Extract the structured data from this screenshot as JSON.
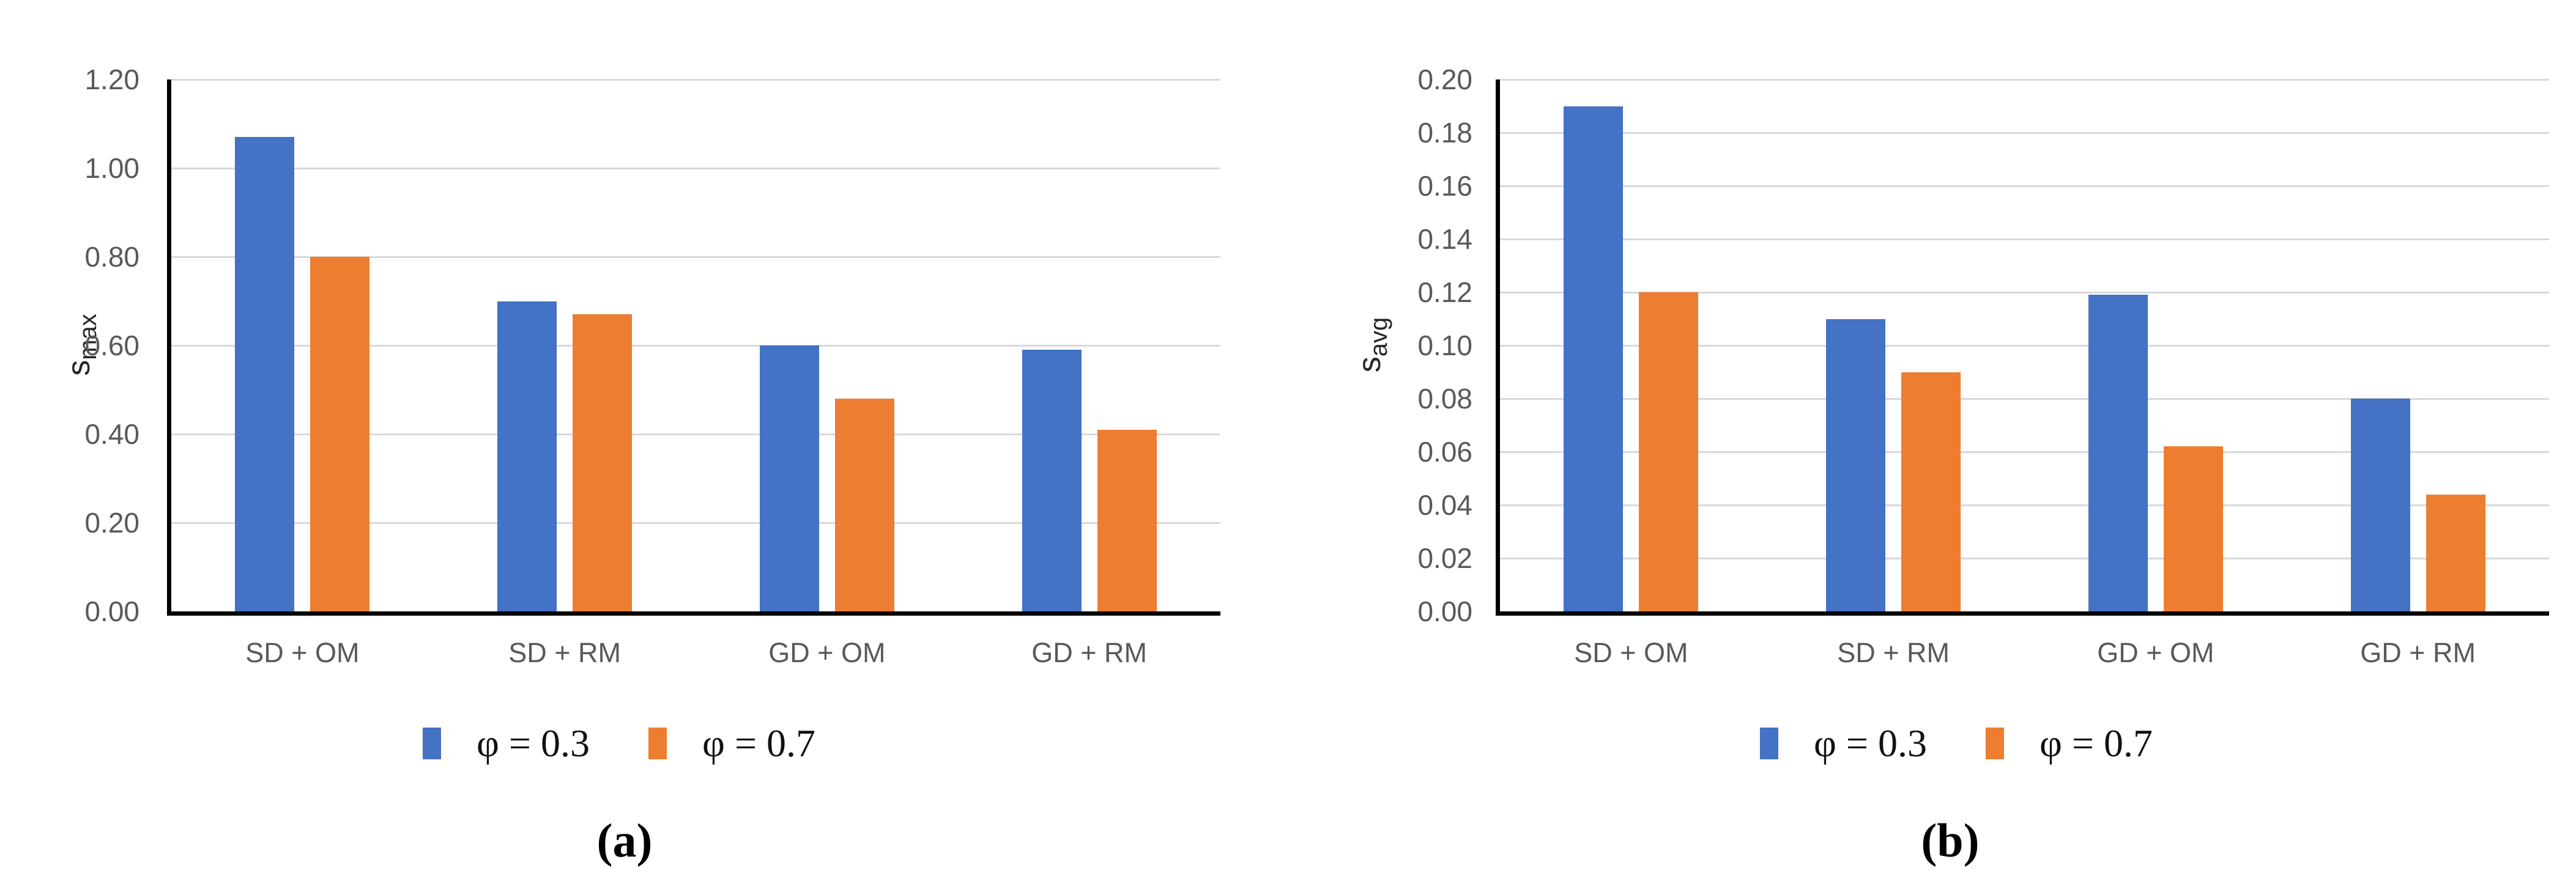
{
  "colors": {
    "series_blue": "#4472C4",
    "series_orange": "#ED7D31",
    "axis": "#000000",
    "gridline": "#D9D9D9",
    "tick_text": "#595959",
    "axis_title_text": "#262626"
  },
  "chart_data": [
    {
      "type": "bar",
      "panel": "a",
      "caption": "(a)",
      "title": "",
      "xlabel": "",
      "ylabel": "s_max",
      "ylabel_base": "s",
      "ylabel_sub": "max",
      "ylim": [
        0,
        1.2
      ],
      "ytick_step": 0.2,
      "grid": true,
      "legend_position": "bottom",
      "yticks": [
        {
          "label": "0.00",
          "value": 0.0
        },
        {
          "label": "0.20",
          "value": 0.2
        },
        {
          "label": "0.40",
          "value": 0.4
        },
        {
          "label": "0.60",
          "value": 0.6
        },
        {
          "label": "0.80",
          "value": 0.8
        },
        {
          "label": "1.00",
          "value": 1.0
        },
        {
          "label": "1.20",
          "value": 1.2
        }
      ],
      "categories": [
        "SD + OM",
        "SD + RM",
        "GD + OM",
        "GD + RM"
      ],
      "series": [
        {
          "name": "φ = 0.3",
          "color": "#4472C4",
          "values": [
            1.07,
            0.7,
            0.6,
            0.59
          ]
        },
        {
          "name": "φ = 0.7",
          "color": "#ED7D31",
          "values": [
            0.8,
            0.67,
            0.48,
            0.41
          ]
        }
      ]
    },
    {
      "type": "bar",
      "panel": "b",
      "caption": "(b)",
      "title": "",
      "xlabel": "",
      "ylabel": "s_avg",
      "ylabel_base": "s",
      "ylabel_sub": "avg",
      "ylim": [
        0,
        0.2
      ],
      "ytick_step": 0.02,
      "grid": true,
      "legend_position": "bottom",
      "yticks": [
        {
          "label": "0.00",
          "value": 0.0
        },
        {
          "label": "0.02",
          "value": 0.02
        },
        {
          "label": "0.04",
          "value": 0.04
        },
        {
          "label": "0.06",
          "value": 0.06
        },
        {
          "label": "0.08",
          "value": 0.08
        },
        {
          "label": "0.10",
          "value": 0.1
        },
        {
          "label": "0.12",
          "value": 0.12
        },
        {
          "label": "0.14",
          "value": 0.14
        },
        {
          "label": "0.16",
          "value": 0.16
        },
        {
          "label": "0.18",
          "value": 0.18
        },
        {
          "label": "0.20",
          "value": 0.2
        }
      ],
      "categories": [
        "SD + OM",
        "SD + RM",
        "GD + OM",
        "GD + RM"
      ],
      "series": [
        {
          "name": "φ = 0.3",
          "color": "#4472C4",
          "values": [
            0.19,
            0.11,
            0.119,
            0.08
          ]
        },
        {
          "name": "φ = 0.7",
          "color": "#ED7D31",
          "values": [
            0.12,
            0.09,
            0.062,
            0.044
          ]
        }
      ]
    }
  ]
}
